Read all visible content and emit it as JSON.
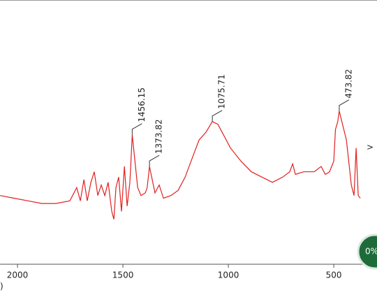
{
  "chart_data": {
    "type": "line",
    "color": "#e02020",
    "x": [
      2083,
      2017,
      1950,
      1884,
      1818,
      1752,
      1719,
      1702,
      1685,
      1669,
      1652,
      1636,
      1619,
      1603,
      1586,
      1570,
      1553,
      1543,
      1533,
      1520,
      1507,
      1493,
      1480,
      1467,
      1462,
      1456,
      1430,
      1414,
      1394,
      1385,
      1374,
      1348,
      1328,
      1308,
      1272,
      1238,
      1205,
      1172,
      1139,
      1106,
      1076,
      1050,
      1023,
      990,
      940,
      891,
      841,
      791,
      742,
      709,
      695,
      682,
      642,
      593,
      560,
      540,
      520,
      500,
      492,
      481,
      474,
      440,
      417,
      404,
      394,
      384,
      374
    ],
    "values": [
      26,
      25,
      24,
      23,
      23,
      24,
      29,
      24,
      32,
      24,
      31,
      35,
      26,
      30,
      26,
      31,
      20,
      17,
      29,
      33,
      20,
      37,
      22,
      31,
      39,
      49,
      29,
      26,
      27,
      29,
      37,
      27,
      30,
      25,
      26,
      28,
      33,
      40,
      47,
      50,
      54,
      53,
      49,
      44,
      39,
      35,
      33,
      31,
      33,
      35,
      38,
      34,
      35,
      35,
      37,
      34,
      35,
      39,
      51,
      54,
      58,
      47,
      30,
      26,
      44,
      26,
      25
    ],
    "xlim": [
      2083,
      295
    ],
    "ylim": [
      0,
      100
    ],
    "xticks": [
      2000,
      1500,
      1000,
      500
    ],
    "annotations": [
      {
        "label": "1456.15",
        "x": 1456
      },
      {
        "label": "1373.82",
        "x": 1374
      },
      {
        "label": "1075.71",
        "x": 1076
      },
      {
        "label": "473.82",
        "x": 474
      }
    ]
  },
  "ui": {
    "progress": "0%",
    "next": ">",
    "fragment": ")"
  }
}
